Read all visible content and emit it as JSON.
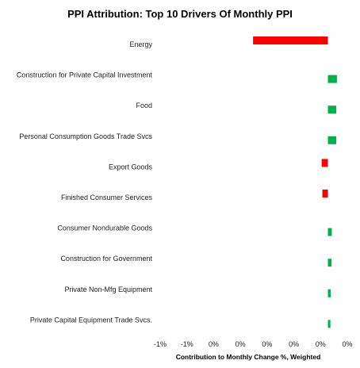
{
  "chart_data": {
    "type": "bar",
    "orientation": "horizontal",
    "title": "PPI Attribution: Top 10 Drivers Of Monthly PPI",
    "xlabel": "Contribution to Monthly Change %, Weighted",
    "ylabel": "",
    "xlim": [
      -0.0121,
      0.0014
    ],
    "tick_labels": [
      "-1%",
      "-1%",
      "0%",
      "0%",
      "0%",
      "0%",
      "0%",
      "0%"
    ],
    "categories": [
      "Energy",
      "Construction for Private Capital Investment",
      "Food",
      "Personal Consumption Goods Trade Svcs",
      "Export Goods",
      "Finished Consumer Services",
      "Consumer Nondurable Goods",
      "Construction for Government",
      "Private Non-Mfg Equipment",
      "Private Capital Equipment Trade Svcs."
    ],
    "values": [
      -0.0054,
      0.00065,
      0.0006,
      0.0006,
      -0.00045,
      -0.0004,
      0.00028,
      0.00026,
      0.0002,
      0.00018
    ],
    "colors": {
      "negative": "#ff0000",
      "positive": "#00b050"
    },
    "grid": false,
    "legend": "none"
  }
}
